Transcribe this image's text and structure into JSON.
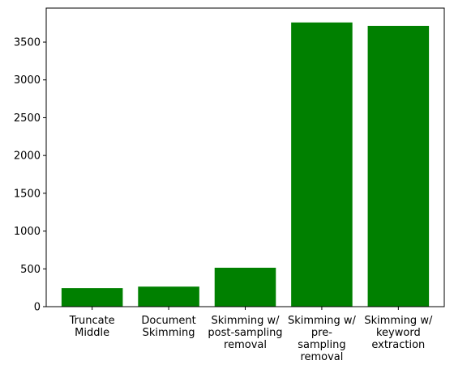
{
  "chart_data": {
    "type": "bar",
    "categories": [
      [
        "Truncate",
        "Middle"
      ],
      [
        "Document",
        "Skimming"
      ],
      [
        "Skimming w/",
        "post-sampling",
        "removal"
      ],
      [
        "Skimming w/",
        "pre-",
        "sampling",
        "removal"
      ],
      [
        "Skimming w/",
        "keyword",
        "extraction"
      ]
    ],
    "values": [
      245,
      265,
      515,
      3760,
      3715
    ],
    "ylim": [
      0,
      3950
    ],
    "yticks": [
      0,
      500,
      1000,
      1500,
      2000,
      2500,
      3000,
      3500
    ],
    "title": "",
    "xlabel": "",
    "ylabel": "",
    "bar_color": "#008000",
    "grid": false,
    "legend": "none"
  }
}
